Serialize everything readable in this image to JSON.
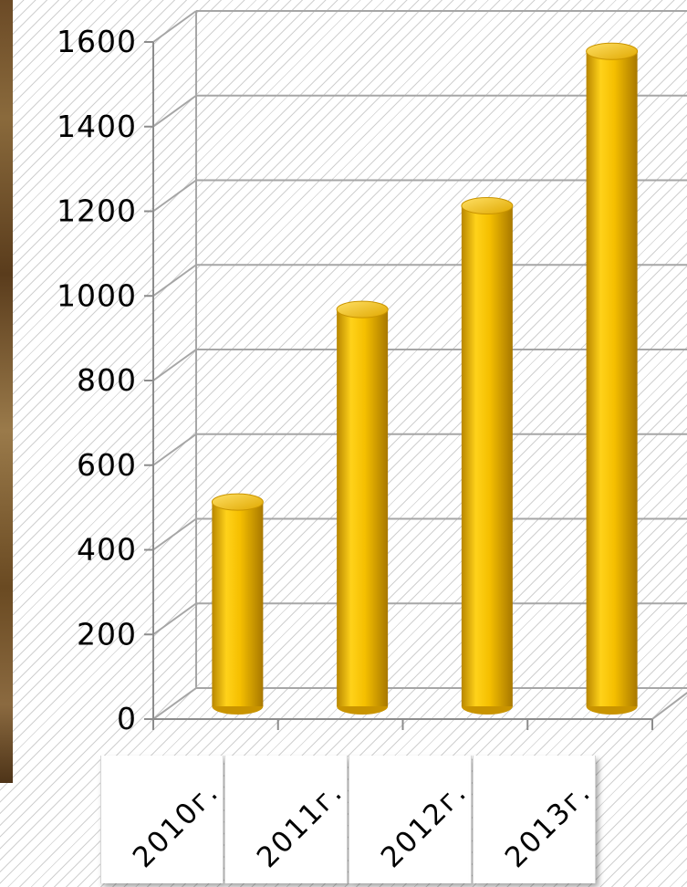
{
  "chart_data": {
    "type": "bar",
    "categories": [
      "2010г.",
      "2011г.",
      "2012г.",
      "2013г."
    ],
    "values": [
      500,
      955,
      1200,
      1565
    ],
    "ylim": [
      0,
      1600
    ],
    "yticks": [
      "0",
      "200",
      "400",
      "600",
      "800",
      "1000",
      "1200",
      "1400",
      "1600"
    ],
    "grid": true,
    "three_d": true,
    "bar_shape": "cylinder",
    "bar_color": "#f5bf00"
  }
}
